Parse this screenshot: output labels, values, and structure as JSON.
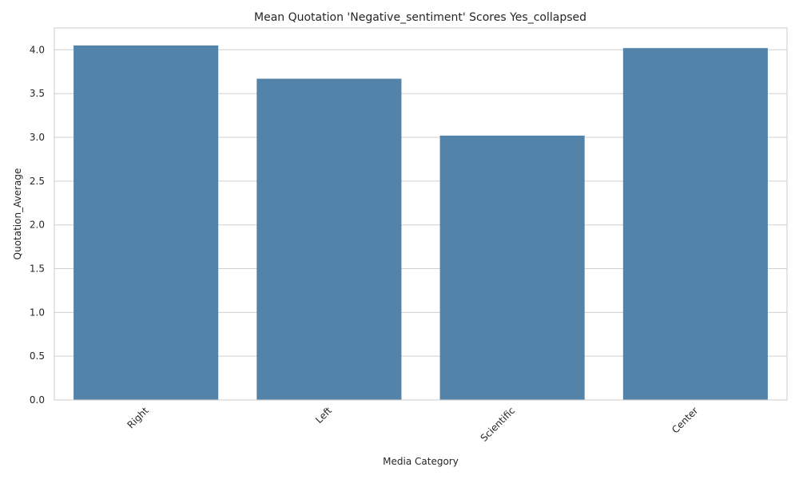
{
  "chart_data": {
    "type": "bar",
    "title": "Mean Quotation 'Negative_sentiment' Scores Yes_collapsed",
    "xlabel": "Media Category",
    "ylabel": "Quotation_Average",
    "categories": [
      "Right",
      "Left",
      "Scientific",
      "Center"
    ],
    "values": [
      4.05,
      3.67,
      3.02,
      4.02
    ],
    "ylim": [
      0,
      4.25
    ],
    "yticks": [
      "0.0",
      "0.5",
      "1.0",
      "1.5",
      "2.0",
      "2.5",
      "3.0",
      "3.5",
      "4.0"
    ],
    "grid": "horizontal",
    "bar_color": "#5383a8",
    "grid_color": "#d0d0d0",
    "axes_edge_color": "#cccccc"
  }
}
